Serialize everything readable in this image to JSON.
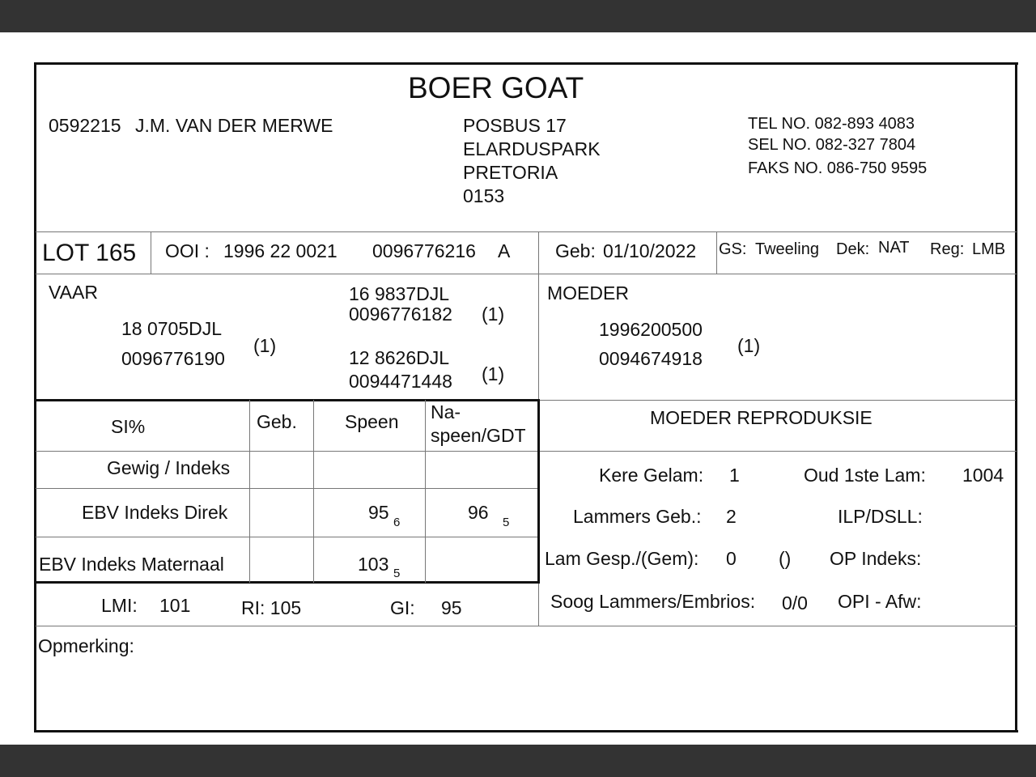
{
  "title": "BOER GOAT",
  "owner": {
    "id": "0592215",
    "name": "J.M. VAN DER MERWE",
    "address": [
      "POSBUS 17",
      "ELARDUSPARK",
      "PRETORIA",
      "0153"
    ],
    "tel": "TEL NO. 082-893 4083",
    "sel": "SEL NO. 082-327 7804",
    "faks": "FAKS NO. 086-750 9595"
  },
  "lot": "LOT 165",
  "ooi": {
    "label": "OOI :",
    "id": "1996 22 0021",
    "number": "0096776216",
    "grade": "A"
  },
  "geb": {
    "label": "Geb:",
    "value": "01/10/2022"
  },
  "gs": {
    "label": "GS:",
    "value": "Tweeling",
    "dek_label": "Dek:",
    "dek": "NAT",
    "reg_label": "Reg:",
    "reg": "LMB"
  },
  "vaar": {
    "label": "VAAR",
    "id": "18 0705DJL",
    "number": "0096776190",
    "count": "(1)",
    "sire": {
      "id": "16 9837DJL",
      "number": "0096776182",
      "count": "(1)"
    },
    "dam": {
      "id": "12 8626DJL",
      "number": "0094471448",
      "count": "(1)"
    }
  },
  "moeder": {
    "label": "MOEDER",
    "id": "1996200500",
    "number": "0094674918",
    "count": "(1)"
  },
  "table": {
    "headers": [
      "SI%",
      "Geb.",
      "Speen",
      "Na-",
      "speen/GDT"
    ],
    "rows": [
      {
        "label": "Gewig / Indeks"
      },
      {
        "label": "EBV Indeks Direk",
        "speen": "95",
        "speen_sub": "6",
        "naspeen": "96",
        "naspeen_sub": "5"
      },
      {
        "label": "EBV Indeks Maternaal",
        "speen": "103",
        "speen_sub": "5"
      }
    ]
  },
  "indices": {
    "lmi_label": "LMI:",
    "lmi": "101",
    "ri": "RI: 105",
    "gi_label": "GI:",
    "gi": "95"
  },
  "repro": {
    "title": "MOEDER REPRODUKSIE",
    "kere_label": "Kere Gelam:",
    "kere": "1",
    "oud_label": "Oud 1ste Lam:",
    "oud": "1004",
    "lammers_label": "Lammers Geb.:",
    "lammers": "2",
    "ilp_label": "ILP/DSLL:",
    "gesp_label": "Lam Gesp./(Gem):",
    "gesp": "0",
    "gem": "()",
    "op_label": "OP Indeks:",
    "soog_label": "Soog Lammers/Embrios:",
    "soog": "0/0",
    "opi_label": "OPI - Afw:"
  },
  "opmerking": "Opmerking:"
}
